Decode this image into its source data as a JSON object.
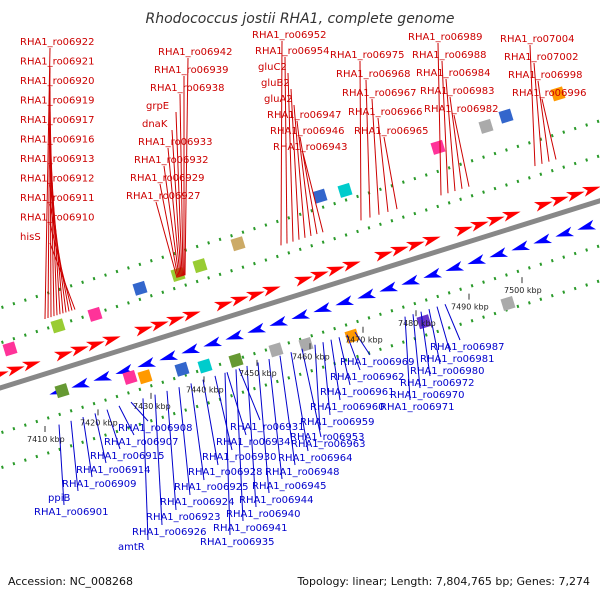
{
  "title": "Rhodococcus jostii RHA1, complete genome",
  "footer": {
    "accession": "Accession: NC_008268",
    "topology": "Topology: linear; Length: 7,804,765 bp; Genes: 7,274"
  },
  "colors": {
    "forward_label": "#cc0000",
    "reverse_label": "#0000cc",
    "forward_gene": "#ff0000",
    "reverse_gene": "#0000ff",
    "backbone": "#888888",
    "dots": "#2a9a2a"
  },
  "ticks": [
    "7410 kbp",
    "7420 kbp",
    "7430 kbp",
    "7440 kbp",
    "7450 kbp",
    "7460 kbp",
    "7470 kbp",
    "7480 kbp",
    "7490 kbp",
    "7500 kbp"
  ],
  "top_labels": [
    "RHA1_ro06922",
    "RHA1_ro06921",
    "RHA1_ro06920",
    "RHA1_ro06919",
    "RHA1_ro06917",
    "RHA1_ro06916",
    "RHA1_ro06913",
    "RHA1_ro06912",
    "RHA1_ro06911",
    "RHA1_ro06910",
    "hisS",
    "RHA1_ro06942",
    "RHA1_ro06939",
    "RHA1_ro06938",
    "grpE",
    "dnaK",
    "RHA1_ro06933",
    "RHA1_ro06932",
    "RHA1_ro06929",
    "RHA1_ro06927",
    "RHA1_ro06952",
    "RHA1_ro06954",
    "gluC2",
    "gluB2",
    "gluA2",
    "RHA1_ro06947",
    "RHA1_ro06946",
    "RHA1_ro06943",
    "RHA1_ro06975",
    "RHA1_ro06968",
    "RHA1_ro06967",
    "RHA1_ro06966",
    "RHA1_ro06965",
    "RHA1_ro06989",
    "RHA1_ro06988",
    "RHA1_ro06984",
    "RHA1_ro06983",
    "RHA1_ro06982",
    "RHA1_ro07004",
    "RHA1_ro07002",
    "RHA1_ro06998",
    "RHA1_ro06996"
  ],
  "bottom_labels": [
    "RHA1_ro06901",
    "ppiB",
    "RHA1_ro06909",
    "RHA1_ro06914",
    "RHA1_ro06915",
    "RHA1_ro06907",
    "RHA1_ro06908",
    "amtR",
    "RHA1_ro06926",
    "RHA1_ro06923",
    "RHA1_ro06924",
    "RHA1_ro06925",
    "RHA1_ro06928",
    "RHA1_ro06930",
    "RHA1_ro06934",
    "RHA1_ro06931",
    "RHA1_ro06935",
    "RHA1_ro06941",
    "RHA1_ro06940",
    "RHA1_ro06944",
    "RHA1_ro06945",
    "RHA1_ro06948",
    "RHA1_ro06964",
    "RHA1_ro06963",
    "RHA1_ro06953",
    "RHA1_ro06959",
    "RHA1_ro06960",
    "RHA1_ro06961",
    "RHA1_ro06962",
    "RHA1_ro06969",
    "RHA1_ro06971",
    "RHA1_ro06970",
    "RHA1_ro06972",
    "RHA1_ro06980",
    "RHA1_ro06981",
    "RHA1_ro06987"
  ]
}
